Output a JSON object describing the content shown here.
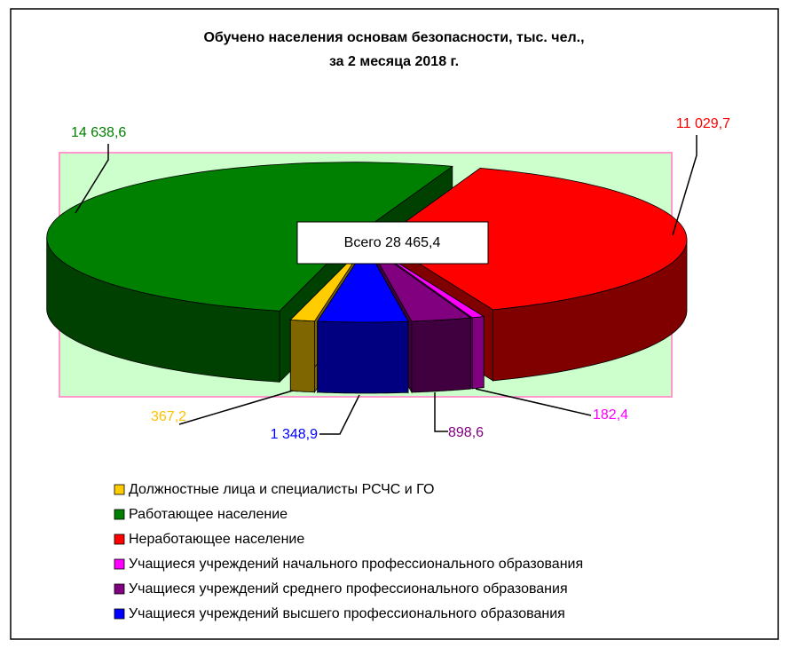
{
  "chart_data": {
    "type": "pie",
    "title": [
      "Обучено населения основам безопасности, тыс. чел.,",
      "за 2 месяца 2018 г."
    ],
    "categories": [
      "Должностные лица и специалисты РСЧС и ГО",
      "Работающее население",
      "Неработающее население",
      "Учащиеся учреждений начального профессионального образования",
      "Учащиеся учреждений среднего профессионального образования",
      "Учащиеся учреждений высшего профессионального образования"
    ],
    "values": [
      367.2,
      14638.6,
      11029.7,
      182.4,
      898.6,
      1348.9
    ],
    "value_labels": [
      "367,2",
      "14 638,6",
      "11 029,7",
      "182,4",
      "898,6",
      "1 348,9"
    ],
    "colors": [
      "#ffcc00",
      "#008000",
      "#ff0000",
      "#ff00ff",
      "#800080",
      "#0000ff"
    ],
    "label_colors": [
      "#ffc000",
      "#008000",
      "#ff0000",
      "#ff00ff",
      "#800080",
      "#0000ff"
    ],
    "total_label": "Всего 28 465,4"
  }
}
